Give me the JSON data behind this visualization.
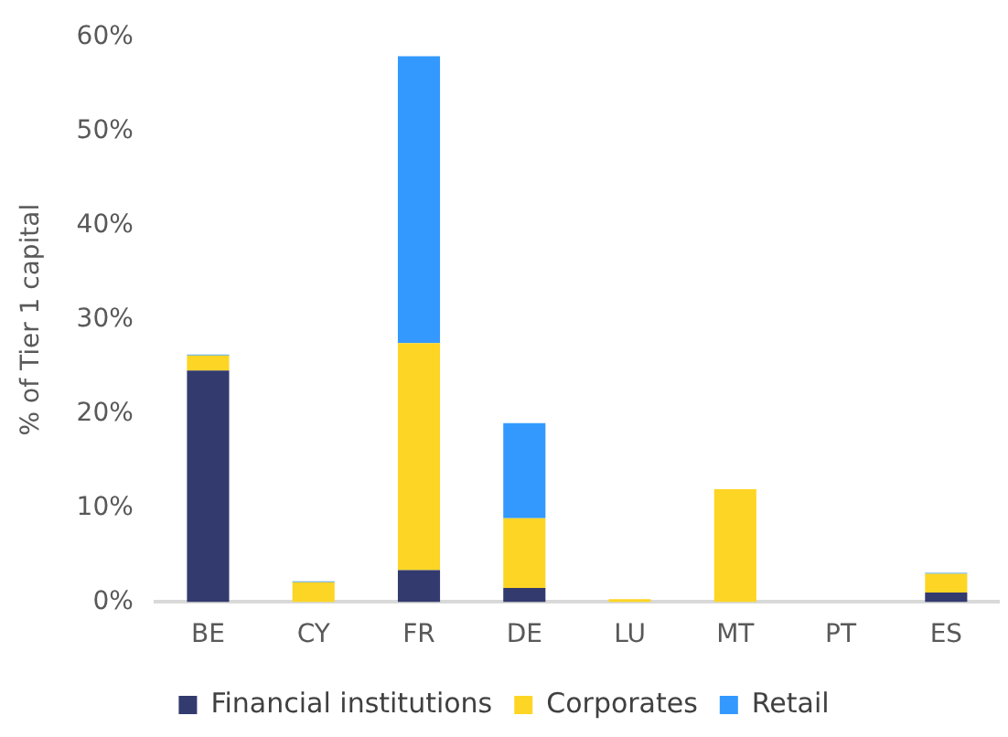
{
  "chart_data": {
    "type": "bar",
    "ylabel": "% of Tier 1 capital",
    "stacked": true,
    "categories": [
      "BE",
      "CY",
      "FR",
      "DE",
      "LU",
      "MT",
      "PT",
      "ES"
    ],
    "series": [
      {
        "name": "Financial institutions",
        "color": "#333a6e",
        "values": [
          24.6,
          0,
          3.4,
          1.5,
          0,
          0,
          0,
          1.0
        ]
      },
      {
        "name": "Corporates",
        "color": "#fdd524",
        "values": [
          1.6,
          2.1,
          24.1,
          7.4,
          0.3,
          12.0,
          0,
          2.0
        ]
      },
      {
        "name": "Retail",
        "color": "#3399ff",
        "values": [
          0.1,
          0.1,
          30.5,
          10.1,
          0,
          0,
          0,
          0.1
        ]
      }
    ],
    "ylim": [
      0,
      60
    ],
    "yticks": [
      {
        "value": 0,
        "label": "0%"
      },
      {
        "value": 10,
        "label": "10%"
      },
      {
        "value": 20,
        "label": "20%"
      },
      {
        "value": 30,
        "label": "30%"
      },
      {
        "value": 40,
        "label": "40%"
      },
      {
        "value": 50,
        "label": "50%"
      },
      {
        "value": 60,
        "label": "60%"
      }
    ],
    "grid": false,
    "legend": "bottom"
  }
}
